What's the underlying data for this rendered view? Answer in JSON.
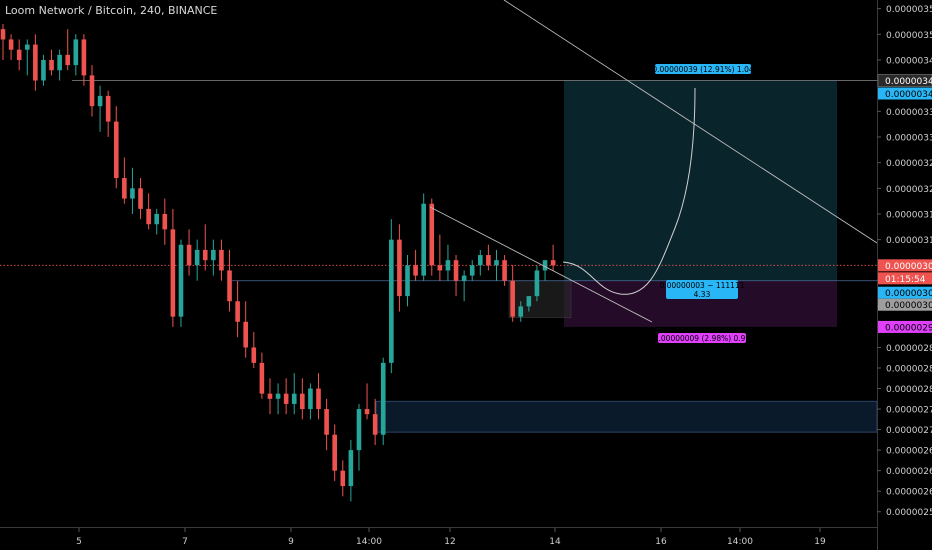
{
  "header": {
    "title": "Loom Network / Bitcoin, 240, BINANCE"
  },
  "chart_data": {
    "type": "candlestick",
    "title": "Loom Network / Bitcoin, 240, BINANCE",
    "ylim": [
      2.55e-06,
      3.56e-06
    ],
    "y_ticks": [
      "0.00000355",
      "0.00000350",
      "0.00000345",
      "0.00000341",
      "0.00000335",
      "0.00000330",
      "0.00000325",
      "0.00000320",
      "0.00000315",
      "0.00000310",
      "0.00000305",
      "0.00000302",
      "0.00000297",
      "0.00000293",
      "0.00000289",
      "0.00000285",
      "0.00000281",
      "0.00000277",
      "0.00000273",
      "0.00000269",
      "0.00000265",
      "0.00000261",
      "0.00000257"
    ],
    "x_ticks": [
      "5",
      "7",
      "9",
      "14:00",
      "12",
      "14",
      "16",
      "14:00",
      "19"
    ],
    "price_labels": {
      "target": "0.00000341",
      "entry": "0.00000302",
      "stop": "0.00000293",
      "last": "0.00000305",
      "countdown": "01:15:54"
    },
    "position": {
      "target_info": "0.00000039 (12.91%) 1.04",
      "entry_info_1": "0.00000003 ~ 111111",
      "entry_info_2": "4.33",
      "stop_info": "0.00000009 (2.98%) 0.99"
    },
    "colors": {
      "up": "#26a69a",
      "down": "#ef5350",
      "bg": "#000000",
      "accent": "#2196f3",
      "stop": "#e040fb"
    },
    "candles": [
      [
        3.51e-06,
        3.52e-06,
        3.45e-06,
        3.49e-06
      ],
      [
        3.49e-06,
        3.5e-06,
        3.45e-06,
        3.47e-06
      ],
      [
        3.47e-06,
        3.49e-06,
        3.43e-06,
        3.45e-06
      ],
      [
        3.47e-06,
        3.49e-06,
        3.42e-06,
        3.48e-06
      ],
      [
        3.48e-06,
        3.5e-06,
        3.39e-06,
        3.41e-06
      ],
      [
        3.41e-06,
        3.46e-06,
        3.4e-06,
        3.45e-06
      ],
      [
        3.45e-06,
        3.47e-06,
        3.42e-06,
        3.43e-06
      ],
      [
        3.43e-06,
        3.47e-06,
        3.41e-06,
        3.46e-06
      ],
      [
        3.46e-06,
        3.51e-06,
        3.43e-06,
        3.44e-06
      ],
      [
        3.44e-06,
        3.5e-06,
        3.42e-06,
        3.49e-06
      ],
      [
        3.49e-06,
        3.5e-06,
        3.4e-06,
        3.42e-06
      ],
      [
        3.42e-06,
        3.44e-06,
        3.34e-06,
        3.36e-06
      ],
      [
        3.36e-06,
        3.4e-06,
        3.31e-06,
        3.38e-06
      ],
      [
        3.38e-06,
        3.39e-06,
        3.3e-06,
        3.33e-06
      ],
      [
        3.33e-06,
        3.36e-06,
        3.2e-06,
        3.22e-06
      ],
      [
        3.22e-06,
        3.26e-06,
        3.17e-06,
        3.18e-06
      ],
      [
        3.18e-06,
        3.24e-06,
        3.15e-06,
        3.2e-06
      ],
      [
        3.2e-06,
        3.22e-06,
        3.14e-06,
        3.16e-06
      ],
      [
        3.16e-06,
        3.19e-06,
        3.12e-06,
        3.13e-06
      ],
      [
        3.13e-06,
        3.16e-06,
        3.11e-06,
        3.15e-06
      ],
      [
        3.15e-06,
        3.18e-06,
        3.09e-06,
        3.12e-06
      ],
      [
        3.12e-06,
        3.16e-06,
        2.93e-06,
        2.95e-06
      ],
      [
        2.95e-06,
        3.1e-06,
        2.93e-06,
        3.09e-06
      ],
      [
        3.09e-06,
        3.12e-06,
        3.03e-06,
        3.05e-06
      ],
      [
        3.05e-06,
        3.1e-06,
        3.02e-06,
        3.08e-06
      ],
      [
        3.08e-06,
        3.13e-06,
        3.04e-06,
        3.06e-06
      ],
      [
        3.06e-06,
        3.1e-06,
        3.03e-06,
        3.08e-06
      ],
      [
        3.08e-06,
        3.1e-06,
        3.02e-06,
        3.04e-06
      ],
      [
        3.04e-06,
        3.08e-06,
        2.96e-06,
        2.98e-06
      ],
      [
        2.98e-06,
        3.02e-06,
        2.91e-06,
        2.94e-06
      ],
      [
        2.94e-06,
        2.98e-06,
        2.87e-06,
        2.89e-06
      ],
      [
        2.89e-06,
        2.92e-06,
        2.85e-06,
        2.86e-06
      ],
      [
        2.86e-06,
        2.88e-06,
        2.79e-06,
        2.8e-06
      ],
      [
        2.8e-06,
        2.83e-06,
        2.76e-06,
        2.79e-06
      ],
      [
        2.79e-06,
        2.82e-06,
        2.76e-06,
        2.8e-06
      ],
      [
        2.8e-06,
        2.83e-06,
        2.76e-06,
        2.78e-06
      ],
      [
        2.78e-06,
        2.84e-06,
        2.76e-06,
        2.8e-06
      ],
      [
        2.8e-06,
        2.83e-06,
        2.75e-06,
        2.77e-06
      ],
      [
        2.77e-06,
        2.82e-06,
        2.75e-06,
        2.81e-06
      ],
      [
        2.81e-06,
        2.84e-06,
        2.75e-06,
        2.77e-06
      ],
      [
        2.77e-06,
        2.79e-06,
        2.69e-06,
        2.72e-06
      ],
      [
        2.72e-06,
        2.74e-06,
        2.63e-06,
        2.65e-06
      ],
      [
        2.65e-06,
        2.67e-06,
        2.6e-06,
        2.62e-06
      ],
      [
        2.62e-06,
        2.71e-06,
        2.59e-06,
        2.69e-06
      ],
      [
        2.69e-06,
        2.78e-06,
        2.65e-06,
        2.77e-06
      ],
      [
        2.77e-06,
        2.82e-06,
        2.75e-06,
        2.76e-06
      ],
      [
        2.76e-06,
        2.79e-06,
        2.7e-06,
        2.72e-06
      ],
      [
        2.72e-06,
        2.87e-06,
        2.7e-06,
        2.86e-06
      ],
      [
        2.86e-06,
        3.14e-06,
        2.84e-06,
        3.1e-06
      ],
      [
        3.1e-06,
        3.13e-06,
        2.96e-06,
        2.99e-06
      ],
      [
        2.99e-06,
        3.07e-06,
        2.97e-06,
        3.05e-06
      ],
      [
        3.05e-06,
        3.08e-06,
        3.02e-06,
        3.03e-06
      ],
      [
        3.03e-06,
        3.19e-06,
        3.02e-06,
        3.17e-06
      ],
      [
        3.17e-06,
        3.18e-06,
        3.03e-06,
        3.05e-06
      ],
      [
        3.05e-06,
        3.11e-06,
        3.02e-06,
        3.04e-06
      ],
      [
        3.04e-06,
        3.09e-06,
        3.02e-06,
        3.06e-06
      ],
      [
        3.06e-06,
        3.07e-06,
        2.99e-06,
        3.02e-06
      ],
      [
        3.02e-06,
        3.04e-06,
        2.98e-06,
        3.03e-06
      ],
      [
        3.03e-06,
        3.06e-06,
        3.02e-06,
        3.05e-06
      ],
      [
        3.05e-06,
        3.08e-06,
        3.03e-06,
        3.07e-06
      ],
      [
        3.07e-06,
        3.09e-06,
        3.04e-06,
        3.05e-06
      ],
      [
        3.05e-06,
        3.08e-06,
        3.02e-06,
        3.06e-06
      ],
      [
        3.06e-06,
        3.07e-06,
        3.01e-06,
        3.02e-06
      ],
      [
        3.02e-06,
        3.05e-06,
        2.94e-06,
        2.95e-06
      ],
      [
        2.95e-06,
        2.98e-06,
        2.94e-06,
        2.97e-06
      ],
      [
        2.97e-06,
        2.99e-06,
        2.96e-06,
        2.99e-06
      ],
      [
        2.99e-06,
        3.05e-06,
        2.98e-06,
        3.04e-06
      ],
      [
        3.04e-06,
        3.06e-06,
        3.02e-06,
        3.06e-06
      ],
      [
        3.06e-06,
        3.09e-06,
        3.04e-06,
        3.05e-06
      ]
    ]
  }
}
